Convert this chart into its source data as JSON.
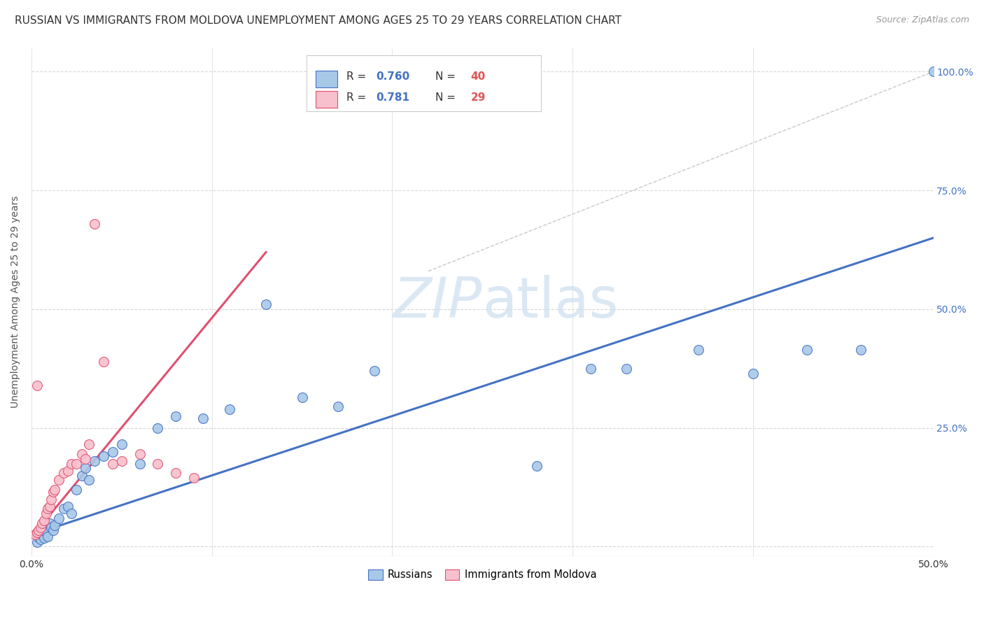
{
  "title": "RUSSIAN VS IMMIGRANTS FROM MOLDOVA UNEMPLOYMENT AMONG AGES 25 TO 29 YEARS CORRELATION CHART",
  "source": "Source: ZipAtlas.com",
  "ylabel": "Unemployment Among Ages 25 to 29 years",
  "xlim": [
    0.0,
    0.5
  ],
  "ylim": [
    -0.02,
    1.05
  ],
  "xticks": [
    0.0,
    0.1,
    0.2,
    0.3,
    0.4,
    0.5
  ],
  "xtick_labels": [
    "0.0%",
    "",
    "",
    "",
    "",
    "50.0%"
  ],
  "yticks": [
    0.0,
    0.25,
    0.5,
    0.75,
    1.0
  ],
  "ytick_labels_right": [
    "",
    "25.0%",
    "50.0%",
    "75.0%",
    "100.0%"
  ],
  "blue_color": "#a8c8e8",
  "pink_color": "#f8c0cc",
  "blue_line_color": "#4472c4",
  "pink_line_color": "#e05070",
  "ref_line_color": "#c8c8c8",
  "grid_color": "#d8d8d8",
  "watermark_color": "#ccdff0",
  "background_color": "#ffffff",
  "blue_scatter_x": [
    0.003,
    0.004,
    0.005,
    0.006,
    0.007,
    0.008,
    0.009,
    0.01,
    0.011,
    0.012,
    0.013,
    0.015,
    0.018,
    0.02,
    0.022,
    0.025,
    0.028,
    0.03,
    0.032,
    0.035,
    0.04,
    0.045,
    0.05,
    0.06,
    0.07,
    0.08,
    0.095,
    0.11,
    0.13,
    0.15,
    0.17,
    0.19,
    0.28,
    0.31,
    0.33,
    0.37,
    0.4,
    0.43,
    0.46,
    0.5
  ],
  "blue_scatter_y": [
    0.01,
    0.02,
    0.015,
    0.025,
    0.018,
    0.03,
    0.022,
    0.05,
    0.04,
    0.035,
    0.045,
    0.06,
    0.08,
    0.085,
    0.07,
    0.12,
    0.15,
    0.165,
    0.14,
    0.18,
    0.19,
    0.2,
    0.215,
    0.175,
    0.25,
    0.275,
    0.27,
    0.29,
    0.51,
    0.315,
    0.295,
    0.37,
    0.17,
    0.375,
    0.375,
    0.415,
    0.365,
    0.415,
    0.415,
    1.0
  ],
  "pink_scatter_x": [
    0.002,
    0.003,
    0.004,
    0.005,
    0.006,
    0.007,
    0.008,
    0.009,
    0.01,
    0.011,
    0.012,
    0.013,
    0.015,
    0.018,
    0.02,
    0.022,
    0.025,
    0.028,
    0.03,
    0.032,
    0.035,
    0.04,
    0.045,
    0.05,
    0.06,
    0.07,
    0.08,
    0.09,
    0.003
  ],
  "pink_scatter_y": [
    0.025,
    0.03,
    0.035,
    0.04,
    0.05,
    0.055,
    0.07,
    0.08,
    0.085,
    0.1,
    0.115,
    0.12,
    0.14,
    0.155,
    0.16,
    0.175,
    0.175,
    0.195,
    0.185,
    0.215,
    0.68,
    0.39,
    0.175,
    0.18,
    0.195,
    0.175,
    0.155,
    0.145,
    0.34
  ],
  "blue_trend_x": [
    0.0,
    0.5
  ],
  "blue_trend_y": [
    0.025,
    0.65
  ],
  "pink_trend_x": [
    0.0,
    0.13
  ],
  "pink_trend_y": [
    0.02,
    0.62
  ],
  "ref_line_x": [
    0.22,
    0.5
  ],
  "ref_line_y": [
    0.58,
    1.0
  ],
  "title_fontsize": 11,
  "axis_label_fontsize": 10,
  "tick_fontsize": 10,
  "source_fontsize": 9
}
